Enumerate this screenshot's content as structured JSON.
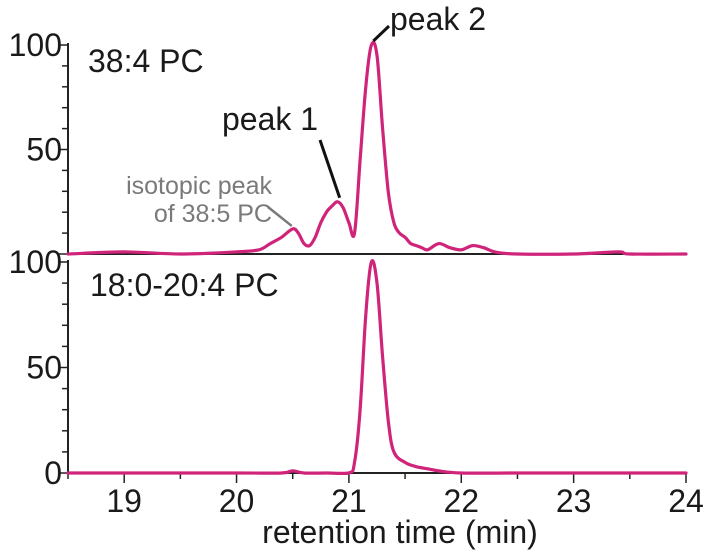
{
  "chart_data": [
    {
      "type": "line",
      "title": "38:4 PC",
      "xlabel": "",
      "ylabel": "",
      "xlim": [
        18.5,
        24
      ],
      "ylim": [
        0,
        100
      ],
      "y_ticks": [
        "50",
        "100"
      ],
      "grid": false,
      "series": [
        {
          "color": "#d0247a",
          "x": [
            18.5,
            19.0,
            19.5,
            20.0,
            20.2,
            20.3,
            20.4,
            20.5,
            20.55,
            20.6,
            20.65,
            20.7,
            20.75,
            20.8,
            20.85,
            20.9,
            20.95,
            21.0,
            21.05,
            21.1,
            21.15,
            21.2,
            21.25,
            21.3,
            21.35,
            21.4,
            21.45,
            21.5,
            21.55,
            21.6,
            21.65,
            21.7,
            21.8,
            21.9,
            22.0,
            22.1,
            22.2,
            22.3,
            22.5,
            23.0,
            23.4,
            23.5,
            24.0
          ],
          "y": [
            0,
            1,
            0,
            1,
            2,
            5,
            8,
            12,
            10,
            5,
            4,
            8,
            15,
            20,
            23,
            25,
            22,
            15,
            10,
            45,
            80,
            100,
            95,
            60,
            30,
            15,
            10,
            8,
            5,
            4,
            3,
            2,
            5,
            3,
            2,
            4,
            3,
            1,
            0,
            0,
            1,
            0,
            0
          ]
        }
      ],
      "annotations": [
        {
          "text": "peak 1",
          "x": 20.9,
          "y": 25
        },
        {
          "text": "peak 2",
          "x": 21.2,
          "y": 100
        },
        {
          "text": "isotopic peak\nof 38:5 PC",
          "x": 20.5,
          "y": 12
        }
      ]
    },
    {
      "type": "line",
      "title": "18:0-20:4 PC",
      "xlabel": "retention time (min)",
      "ylabel": "",
      "xlim": [
        18.5,
        24
      ],
      "ylim": [
        0,
        100
      ],
      "x_ticks": [
        "19",
        "20",
        "21",
        "22",
        "23",
        "24"
      ],
      "y_ticks": [
        "0",
        "50",
        "100"
      ],
      "grid": false,
      "series": [
        {
          "color": "#d0247a",
          "x": [
            18.5,
            19.0,
            20.0,
            20.4,
            20.5,
            20.6,
            20.8,
            21.0,
            21.05,
            21.1,
            21.15,
            21.2,
            21.25,
            21.3,
            21.35,
            21.4,
            21.5,
            21.6,
            21.7,
            21.8,
            22.0,
            22.5,
            23.0,
            24.0
          ],
          "y": [
            0,
            0,
            0,
            0,
            1,
            0,
            0,
            0,
            5,
            30,
            75,
            100,
            90,
            55,
            25,
            10,
            5,
            3,
            2,
            1,
            0,
            0,
            0,
            0
          ]
        }
      ]
    }
  ]
}
